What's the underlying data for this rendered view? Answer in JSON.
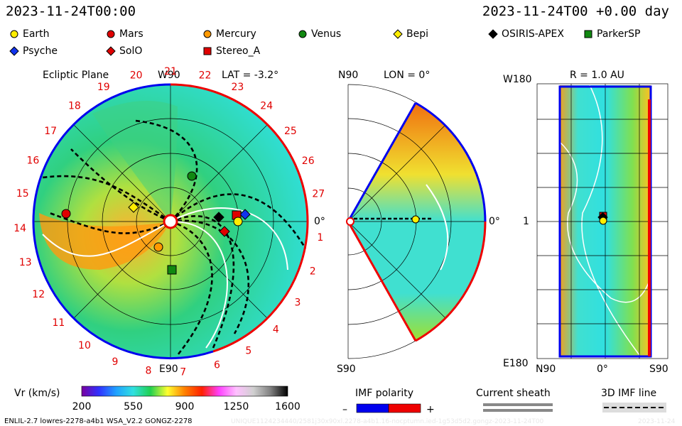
{
  "header": {
    "date": "2023-11-24T00:00",
    "offset": "2023-11-24T00 +0.00 day"
  },
  "legend": [
    {
      "label": "Earth",
      "shape": "circle",
      "color": "#ffee00"
    },
    {
      "label": "Mars",
      "shape": "circle",
      "color": "#e00000"
    },
    {
      "label": "Mercury",
      "shape": "circle",
      "color": "#ff9900"
    },
    {
      "label": "Venus",
      "shape": "circle",
      "color": "#118811"
    },
    {
      "label": "Bepi",
      "shape": "diamond",
      "color": "#ffee00"
    },
    {
      "label": "OSIRIS-APEX",
      "shape": "diamond",
      "color": "#000000"
    },
    {
      "label": "ParkerSP",
      "shape": "square",
      "color": "#118811"
    },
    {
      "label": "Psyche",
      "shape": "diamond",
      "color": "#1133ee"
    },
    {
      "label": "SolO",
      "shape": "diamond",
      "color": "#e00000"
    },
    {
      "label": "Stereo_A",
      "shape": "square",
      "color": "#e00000"
    }
  ],
  "panel1": {
    "title": "Ecliptic Plane",
    "lat": "LAT = -3.2°",
    "top_label": "W90",
    "bottom_label": "E90",
    "right_label": "0°",
    "carrington": [
      "1",
      "2",
      "3",
      "4",
      "5",
      "6",
      "7",
      "8",
      "9",
      "10",
      "11",
      "12",
      "13",
      "14",
      "15",
      "16",
      "17",
      "18",
      "19",
      "20",
      "21",
      "22",
      "23",
      "24",
      "25",
      "26",
      "27"
    ]
  },
  "panel2": {
    "top_left": "N90",
    "title": "LON = 0°",
    "bottom_left": "S90",
    "right_label": "0°"
  },
  "panel3": {
    "title": "R = 1.0 AU",
    "top_left": "W180",
    "mid_left": "1",
    "bottom_left": "E180",
    "bottom": [
      "N90",
      "0°",
      "S90"
    ]
  },
  "colorbar": {
    "label": "Vr (km/s)",
    "ticks": [
      "200",
      "550",
      "900",
      "1250",
      "1600"
    ],
    "stops": [
      "#7a00a0",
      "#3030ff",
      "#20a0ff",
      "#30e0e0",
      "#20d050",
      "#ffff30",
      "#ff8000",
      "#ff2000",
      "#ff40ff",
      "#ffc0ff",
      "#d0d0d0",
      "#808080",
      "#000000"
    ]
  },
  "imf": {
    "title": "IMF polarity",
    "minus": "–",
    "plus": "+",
    "neg_color": "#0000ee",
    "pos_color": "#ee0000"
  },
  "sheath": {
    "title": "Current sheath"
  },
  "imfline": {
    "title": "3D IMF line"
  },
  "footer": {
    "model": "ENLIL-2.7 lowres-2278-a4b1 WSA_V2.2 GONGZ-2278",
    "run": "UNIQUE1124234440/2581j30x90xl.2278-a4b1.16-nocptumn.ied-1g53d5d2.gongz-2023-11-24T00",
    "date": "2023-11-24"
  }
}
